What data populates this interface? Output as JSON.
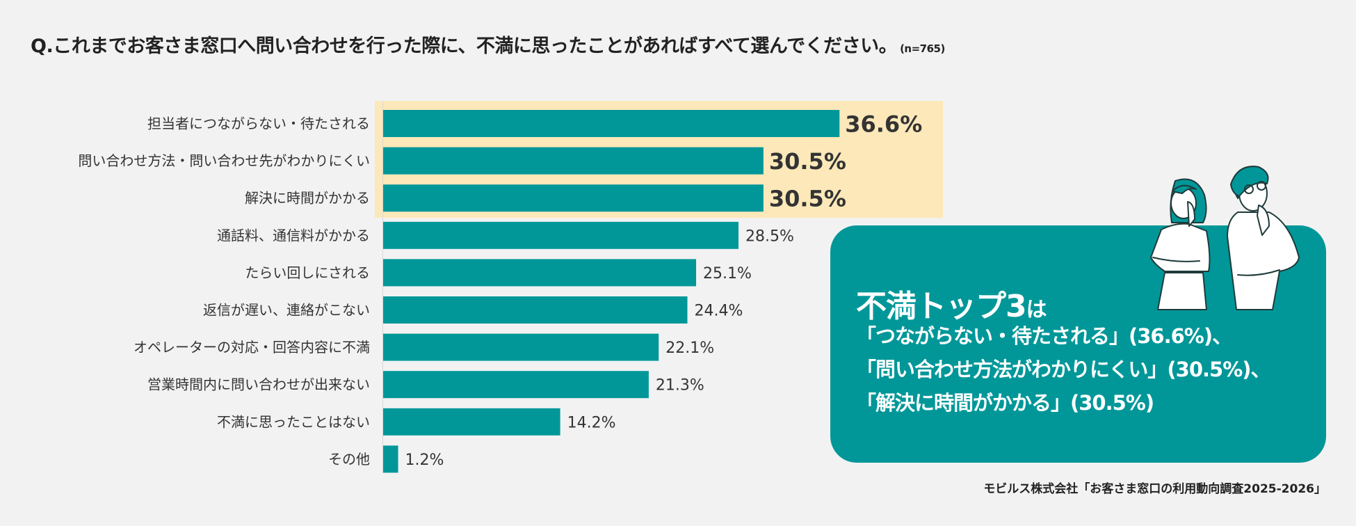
{
  "title": {
    "question": "Q.これまでお客さま窓口へ問い合わせを行った際に、不満に思ったことがあればすべて選んでください。",
    "sample": "(n=765)"
  },
  "chart_data": {
    "type": "bar",
    "orientation": "horizontal",
    "categories": [
      "担当者につながらない・待たされる",
      "問い合わせ方法・問い合わせ先がわかりにくい",
      "解決に時間がかかる",
      "通話料、通信料がかかる",
      "たらい回しにされる",
      "返信が遅い、連絡がこない",
      "オペレーターの対応・回答内容に不満",
      "営業時間内に問い合わせが出来ない",
      "不満に思ったことはない",
      "その他"
    ],
    "values": [
      36.6,
      30.5,
      30.5,
      28.5,
      25.1,
      24.4,
      22.1,
      21.3,
      14.2,
      1.2
    ],
    "value_labels": [
      "36.6%",
      "30.5%",
      "30.5%",
      "28.5%",
      "25.1%",
      "24.4%",
      "22.1%",
      "21.3%",
      "14.2%",
      "1.2%"
    ],
    "highlighted": [
      0,
      1,
      2
    ],
    "unit": "%",
    "colors": {
      "bar": "#019799",
      "highlight": "#fce8b9"
    }
  },
  "callout": {
    "heading": "不満トップ3",
    "heading_suffix": "は",
    "lines": [
      "「つながらない・待たされる」(36.6%)、",
      "「問い合わせ方法がわかりにくい」(30.5%)、",
      "「解決に時間がかかる」(30.5%)"
    ]
  },
  "source": "モビルス株式会社「お客さま窓口の利用動向調査2025-2026」"
}
